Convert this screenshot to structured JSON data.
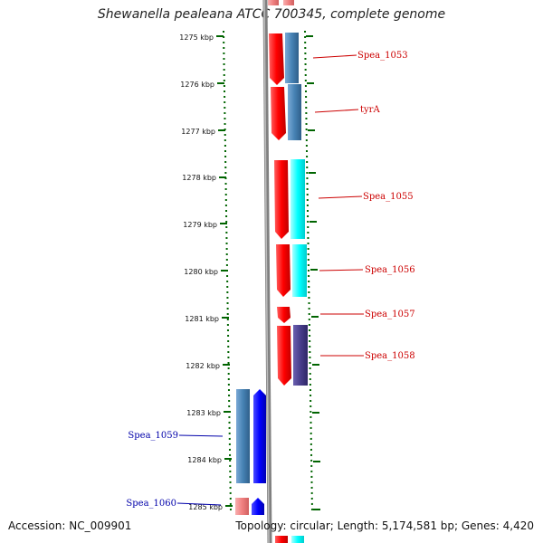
{
  "title": "Shewanella pealeana ATCC 700345, complete genome",
  "accession": "Accession: NC_009901",
  "topology": "Topology: circular; Length: 5,174,581 bp; Genes: 4,420",
  "ticks": [
    {
      "label": "1275 kbp"
    },
    {
      "label": "1276 kbp"
    },
    {
      "label": "1277 kbp"
    },
    {
      "label": "1278 kbp"
    },
    {
      "label": "1279 kbp"
    },
    {
      "label": "1280 kbp"
    },
    {
      "label": "1281 kbp"
    },
    {
      "label": "1282 kbp"
    },
    {
      "label": "1283 kbp"
    },
    {
      "label": "1284 kbp"
    },
    {
      "label": "1285 kbp"
    }
  ],
  "gene_labels": {
    "forward": [
      "Spea_1053",
      "tyrA",
      "Spea_1055",
      "Spea_1056",
      "Spea_1057",
      "Spea_1058"
    ],
    "reverse": [
      "Spea_1059",
      "Spea_1060"
    ]
  },
  "colors": {
    "forward_gene": "#ff0000",
    "reverse_gene": "#0000ff",
    "steel_blue": "#4682b4",
    "cyan": "#00ffff",
    "dark_slate": "#483d8b",
    "light_red": "#f08080",
    "tick_green": "#006400",
    "label_red": "#cc0000",
    "label_blue": "#0000aa",
    "backbone": "#808080"
  },
  "icons": [
    "forward-gene-arrow-icon",
    "reverse-gene-arrow-icon"
  ]
}
